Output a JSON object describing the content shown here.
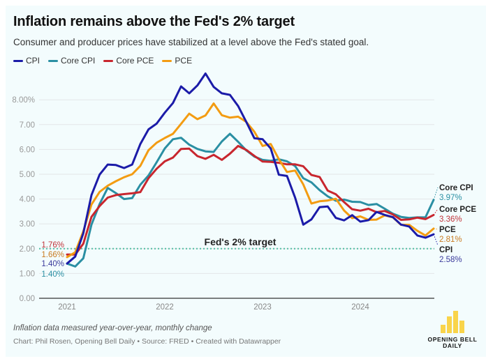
{
  "header": {
    "title": "Inflation remains above the Fed's 2% target",
    "subtitle": "Consumer and producer prices have stabilized at a level above the Fed's stated goal."
  },
  "footer": {
    "notes": "Inflation data measured year-over-year, monthly change",
    "credits": "Chart: Phil Rosen, Opening Bell Daily • Source: FRED • Created with Datawrapper"
  },
  "logo": {
    "line1": "OPENING BELL",
    "line2": "DAILY",
    "color": "#f9d44a"
  },
  "chart_data": {
    "type": "line",
    "title": "Inflation remains above the Fed's 2% target",
    "xlabel": "",
    "ylabel": "",
    "x_start": "2021-01",
    "x_end": "2024-10",
    "x_tick_labels": [
      "2021",
      "2022",
      "2023",
      "2024"
    ],
    "y_ticks": [
      0,
      1,
      2,
      3,
      4,
      5,
      6,
      7,
      8
    ],
    "y_tick_labels": [
      "0.00",
      "1.00",
      "2.00",
      "3.00",
      "4.00",
      "5.00",
      "6.00",
      "7.00",
      "8.00%"
    ],
    "ylim": [
      0,
      9
    ],
    "grid": true,
    "legend_position": "top-left",
    "reference_line": {
      "value": 2,
      "label": "Fed's 2% target",
      "color": "#5cc1a8"
    },
    "series": [
      {
        "name": "CPI",
        "color": "#1b1ba8",
        "label_color": "#3a3a9c",
        "start_label": "1.40%",
        "end_label": "2.58%",
        "values": [
          1.4,
          1.68,
          2.62,
          4.16,
          4.99,
          5.39,
          5.37,
          5.25,
          5.39,
          6.22,
          6.81,
          7.04,
          7.48,
          7.87,
          8.54,
          8.26,
          8.58,
          9.06,
          8.52,
          8.26,
          8.2,
          7.75,
          7.11,
          6.45,
          6.41,
          6.04,
          4.98,
          4.93,
          4.05,
          2.97,
          3.18,
          3.67,
          3.7,
          3.24,
          3.14,
          3.35,
          3.09,
          3.15,
          3.48,
          3.36,
          3.27,
          2.97,
          2.89,
          2.53,
          2.44,
          2.58
        ]
      },
      {
        "name": "Core CPI",
        "color": "#2a8fa3",
        "label_color": "#2a8fa3",
        "start_label": "1.40%",
        "end_label": "3.97%",
        "values": [
          1.4,
          1.28,
          1.61,
          2.97,
          3.8,
          4.45,
          4.24,
          4.0,
          4.04,
          4.58,
          4.95,
          5.48,
          6.04,
          6.41,
          6.47,
          6.19,
          6.02,
          5.92,
          5.9,
          6.32,
          6.63,
          6.31,
          5.96,
          5.71,
          5.58,
          5.54,
          5.6,
          5.52,
          5.33,
          4.84,
          4.67,
          4.36,
          4.11,
          3.93,
          3.98,
          3.89,
          3.88,
          3.76,
          3.8,
          3.61,
          3.41,
          3.28,
          3.24,
          3.26,
          3.26,
          3.97
        ]
      },
      {
        "name": "Core PCE",
        "color": "#c8262e",
        "label_color": "#c0343a",
        "start_label": "1.76%",
        "end_label": "3.36%",
        "values": [
          1.76,
          1.76,
          2.2,
          3.28,
          3.72,
          4.06,
          4.16,
          4.2,
          4.23,
          4.28,
          4.84,
          5.22,
          5.52,
          5.67,
          6.02,
          6.03,
          5.73,
          5.62,
          5.78,
          5.58,
          5.83,
          6.14,
          5.98,
          5.74,
          5.51,
          5.5,
          5.46,
          5.4,
          5.4,
          5.32,
          4.97,
          4.89,
          4.34,
          4.19,
          3.88,
          3.59,
          3.53,
          3.61,
          3.47,
          3.52,
          3.38,
          3.16,
          3.18,
          3.25,
          3.19,
          3.36
        ]
      },
      {
        "name": "PCE",
        "color": "#f39c12",
        "label_color": "#c97a20",
        "start_label": "1.66%",
        "end_label": "2.81%",
        "values": [
          1.66,
          1.85,
          2.7,
          3.78,
          4.29,
          4.54,
          4.72,
          4.88,
          5.0,
          5.34,
          5.97,
          6.27,
          6.46,
          6.63,
          7.03,
          7.44,
          7.22,
          7.37,
          7.85,
          7.38,
          7.28,
          7.32,
          7.11,
          6.71,
          6.14,
          6.22,
          5.61,
          5.09,
          5.15,
          4.59,
          3.82,
          3.91,
          3.94,
          4.01,
          3.54,
          3.23,
          3.3,
          3.16,
          3.17,
          3.34,
          3.26,
          2.96,
          2.96,
          2.72,
          2.53,
          2.81
        ]
      }
    ]
  }
}
